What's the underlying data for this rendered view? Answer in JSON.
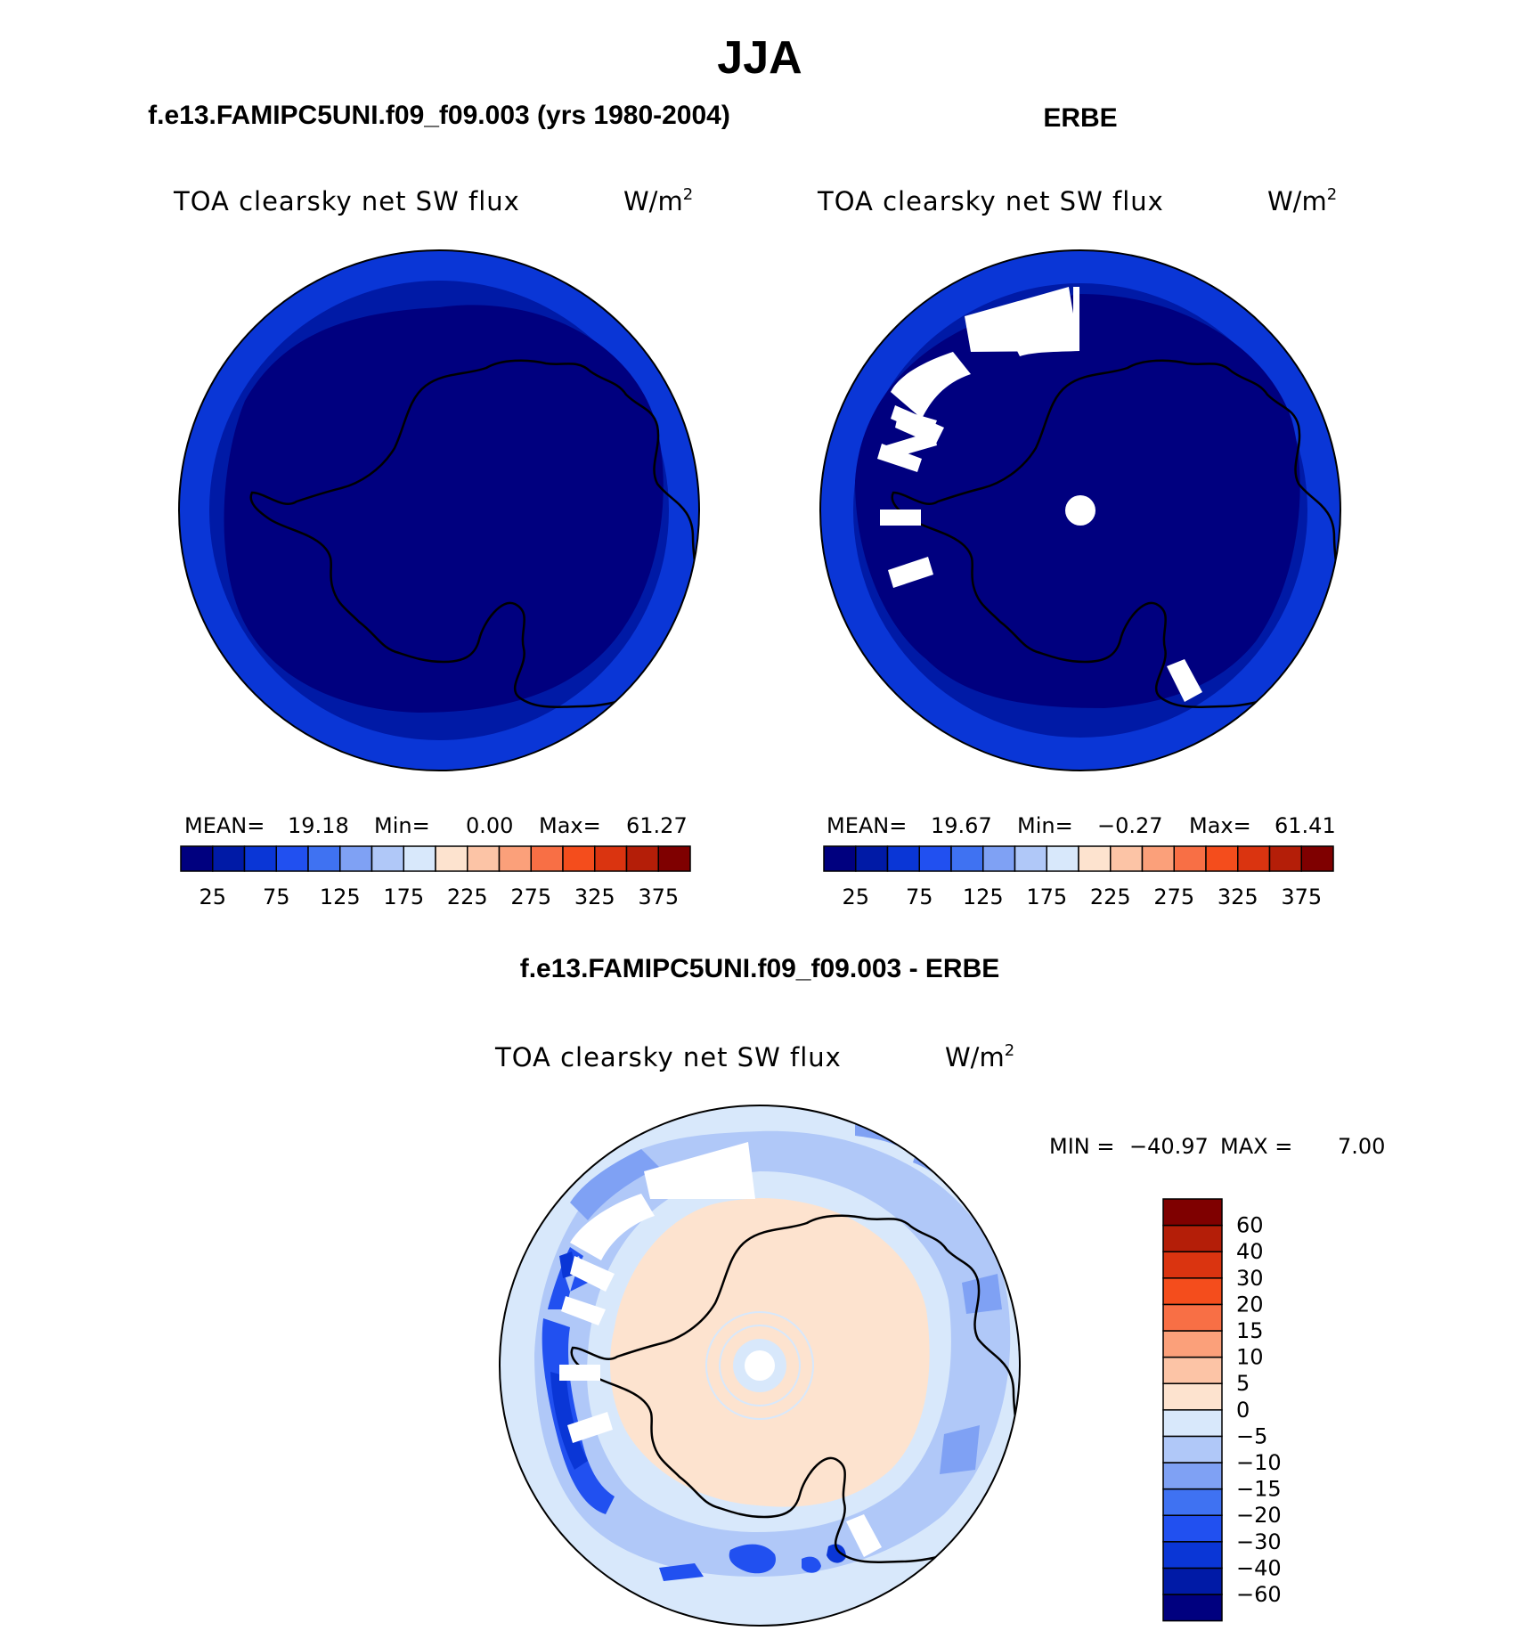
{
  "figure": {
    "title": "JJA"
  },
  "panels": [
    {
      "id": "model",
      "header": "f.e13.FAMIPC5UNI.f09_f09.003 (yrs 1980-2004)",
      "variable": "TOA clearsky net SW flux",
      "units_base": "W/m",
      "units_sup": "2",
      "stats": {
        "mean_label": "MEAN=",
        "mean": "19.18",
        "min_label": "Min=",
        "min": "0.00",
        "max_label": "Max=",
        "max": "61.27"
      }
    },
    {
      "id": "obs",
      "header": "ERBE",
      "variable": "TOA clearsky net SW flux",
      "units_base": "W/m",
      "units_sup": "2",
      "stats": {
        "mean_label": "MEAN=",
        "mean": "19.67",
        "min_label": "Min=",
        "min": "−0.27",
        "max_label": "Max=",
        "max": "61.41"
      }
    }
  ],
  "diff_panel": {
    "header": "f.e13.FAMIPC5UNI.f09_f09.003 - ERBE",
    "variable": "TOA clearsky net SW flux",
    "units_base": "W/m",
    "units_sup": "2",
    "minmax": {
      "min_label": "MIN =",
      "min": "−40.97",
      "max_label": "MAX =",
      "max": "7.00"
    }
  },
  "colorbar_abs": {
    "colors": [
      "#00007f",
      "#001aa6",
      "#0a36d6",
      "#2150f0",
      "#3f72f2",
      "#7fa1f4",
      "#b0c8f8",
      "#d8e8fb",
      "#fde3cf",
      "#fcc4a6",
      "#fba07a",
      "#f86f45",
      "#f44d1c",
      "#da3410",
      "#b41e08",
      "#7f0000"
    ],
    "tick_labels": [
      "25",
      "75",
      "125",
      "175",
      "225",
      "275",
      "325",
      "375"
    ]
  },
  "colorbar_diff": {
    "colors_bottom_to_top": [
      "#00007f",
      "#001aa6",
      "#0a36d6",
      "#2150f0",
      "#3f72f2",
      "#7fa1f4",
      "#b0c8f8",
      "#d8e8fb",
      "#fde3cf",
      "#fcc4a6",
      "#fba07a",
      "#f86f45",
      "#f44d1c",
      "#da3410",
      "#b41e08",
      "#7f0000"
    ],
    "tick_labels_bottom_to_top": [
      "−60",
      "−40",
      "−30",
      "−20",
      "−15",
      "−10",
      "−5",
      "0",
      "5",
      "10",
      "15",
      "20",
      "30",
      "40",
      "60"
    ]
  },
  "map_colors": {
    "abs_outer_ring": "#0a36d6",
    "abs_middle_ring": "#001aa6",
    "abs_inner": "#00007f",
    "diff_base": "#d8e8fb",
    "diff_land": "#fde3cf",
    "diff_band_light": "#b0c8f8",
    "diff_band_mid": "#7fa1f4",
    "diff_band_dark": "#2150f0",
    "diff_band_darker": "#0a36d6",
    "missing": "#ffffff",
    "coast": "#000000"
  }
}
